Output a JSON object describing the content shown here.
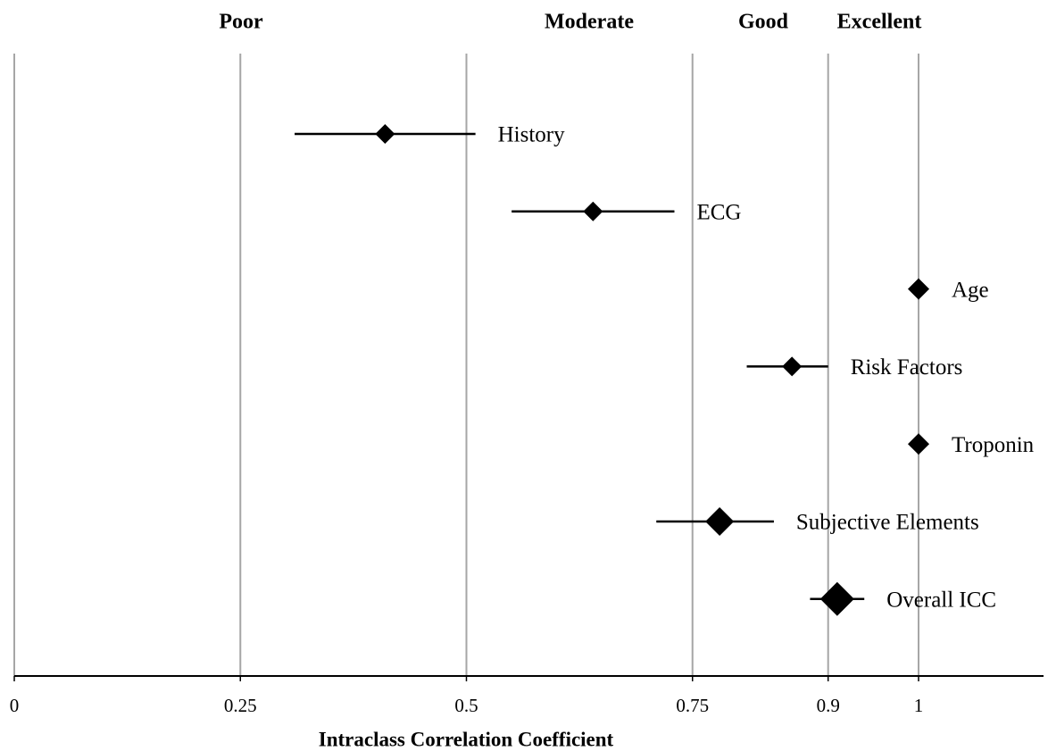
{
  "chart_data": {
    "type": "forest",
    "annotations": [
      "Poor",
      "Moderate",
      "Good",
      "Excellent"
    ],
    "xlabel": "Intraclass Correlation Coefficient",
    "categories": [
      "History",
      "ECG",
      "Age",
      "Risk Factors",
      "Troponin",
      "Subjective Elements",
      "Overall ICC"
    ],
    "values": [
      0.41,
      0.64,
      1.0,
      0.86,
      1.0,
      0.78,
      0.91
    ],
    "ci_lower": [
      0.31,
      0.55,
      null,
      0.81,
      null,
      0.71,
      0.88
    ],
    "ci_upper": [
      0.51,
      0.73,
      null,
      0.9,
      null,
      0.84,
      0.94
    ],
    "color": "#000000",
    "xlim": [
      0,
      1
    ],
    "xticks": [
      0,
      0.25,
      0.5,
      0.75,
      0.9,
      1
    ],
    "grid": true
  }
}
